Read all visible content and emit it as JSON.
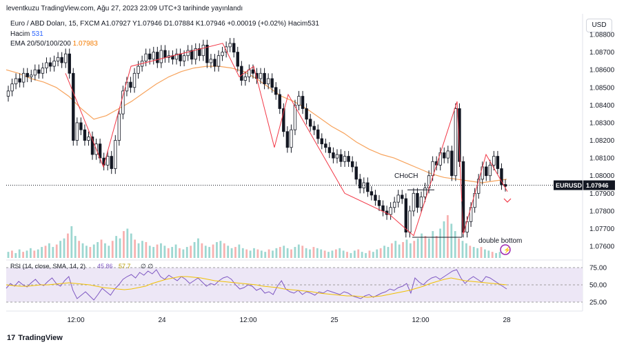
{
  "header": {
    "published": "leventkuzu TradingView.com, Ağu 27, 2023 23:09 UTC+3 tarihinde yayınlandı"
  },
  "legend": {
    "symbol_line": "Euro / ABD Doları, 15, FXCM  A1.07927  Y1.07946  D1.07884  K1.07946  +0.00019 (+0.02%)  Hacim531",
    "volume_label": "Hacim",
    "volume_value": "531",
    "ema_label": "EMA 20/50/100/200",
    "ema_value": "1.07983"
  },
  "currency_button": "USD",
  "price_tag": {
    "symbol": "EURUSD",
    "value": "1.07946"
  },
  "annotations": {
    "choch": "CHoCH",
    "double_bottom": "double bottom"
  },
  "rsi": {
    "label": "RSI (14, close, SMA, 14, 2)",
    "value": "45.86",
    "extra": "57.7",
    "tail": "∅ ∅"
  },
  "footer": {
    "brand": "TradingView"
  },
  "colors": {
    "candle": "#131722",
    "zigzag": "#f23645",
    "ema": "#f7a35c",
    "vol_up": "#26a69a",
    "vol_down": "#ef5350",
    "rsi_line": "#7e57c2",
    "rsi_ma": "#f0c000",
    "rsi_band": "#ede7f6"
  },
  "chart_data": {
    "type": "candlestick",
    "symbol": "EURUSD",
    "timeframe": "15",
    "price_axis": {
      "ticks": [
        "1.08800",
        "1.08700",
        "1.08600",
        "1.08500",
        "1.08400",
        "1.08300",
        "1.08200",
        "1.08100",
        "1.08000",
        "1.07900",
        "1.07800",
        "1.07700",
        "1.07600"
      ],
      "ylim": [
        1.0753,
        1.088
      ]
    },
    "time_axis": {
      "ticks": [
        "12:00",
        "24",
        "12:00",
        "25",
        "12:00",
        "28"
      ]
    },
    "rsi_axis": {
      "ticks": [
        "75.00",
        "50.00",
        "25.00"
      ],
      "ylim": [
        15,
        85
      ]
    },
    "price_close": [
      1.0848,
      1.0852,
      1.0855,
      1.0853,
      1.0858,
      1.0856,
      1.0857,
      1.086,
      1.0858,
      1.0861,
      1.0864,
      1.0862,
      1.0865,
      1.0867,
      1.0864,
      1.0869,
      1.0858,
      1.082,
      1.083,
      1.0826,
      1.082,
      1.0822,
      1.0812,
      1.0818,
      1.081,
      1.0806,
      1.0811,
      1.0804,
      1.082,
      1.0835,
      1.0848,
      1.0853,
      1.085,
      1.0858,
      1.0862,
      1.0865,
      1.0869,
      1.0866,
      1.087,
      1.0864,
      1.0871,
      1.0867,
      1.0868,
      1.0866,
      1.0869,
      1.0865,
      1.0868,
      1.0871,
      1.0866,
      1.0872,
      1.0868,
      1.0874,
      1.0864,
      1.0866,
      1.0862,
      1.0868,
      1.087,
      1.0873,
      1.0875,
      1.087,
      1.0862,
      1.0854,
      1.0856,
      1.086,
      1.0858,
      1.0855,
      1.0858,
      1.0852,
      1.0855,
      1.085,
      1.0846,
      1.0838,
      1.0825,
      1.0816,
      1.0826,
      1.084,
      1.0845,
      1.0838,
      1.0832,
      1.0828,
      1.0826,
      1.0821,
      1.0818,
      1.0816,
      1.0813,
      1.081,
      1.0812,
      1.0808,
      1.0811,
      1.0808,
      1.0805,
      1.0798,
      1.0793,
      1.0796,
      1.0791,
      1.0789,
      1.0786,
      1.0783,
      1.078,
      1.0778,
      1.0782,
      1.0785,
      1.0789,
      1.0787,
      1.0768,
      1.078,
      1.079,
      1.0782,
      1.0788,
      1.0793,
      1.08,
      1.0808,
      1.0806,
      1.0813,
      1.081,
      1.0814,
      1.08,
      1.0838,
      1.0808,
      1.0768,
      1.0774,
      1.0782,
      1.079,
      1.0798,
      1.0805,
      1.08,
      1.0806,
      1.0811,
      1.0804,
      1.0795,
      1.0794
    ],
    "ema_values": [
      1.086,
      1.0858,
      1.0855,
      1.0853,
      1.085,
      1.0845,
      1.0838,
      1.0832,
      1.0834,
      1.0838,
      1.0842,
      1.0847,
      1.0852,
      1.0856,
      1.0859,
      1.0861,
      1.0862,
      1.0862,
      1.0861,
      1.0859,
      1.0855,
      1.085,
      1.0845,
      1.0842,
      1.0838,
      1.0833,
      1.0828,
      1.0824,
      1.0819,
      1.0815,
      1.0812,
      1.081,
      1.0807,
      1.0804,
      1.0801,
      1.0799,
      1.0798,
      1.0797,
      1.0796,
      1.0797,
      1.0798
    ],
    "zigzag_points": [
      {
        "label": "H1",
        "price": 1.0858
      },
      {
        "label": "L1",
        "price": 1.0805
      },
      {
        "label": "H2",
        "price": 1.0862
      },
      {
        "label": "H3",
        "price": 1.0875
      },
      {
        "label": "L2",
        "price": 1.0856
      },
      {
        "label": "H4",
        "price": 1.0862
      },
      {
        "label": "L3",
        "price": 1.0816
      },
      {
        "label": "H5",
        "price": 1.0846
      },
      {
        "label": "L4",
        "price": 1.079
      },
      {
        "label": "L5",
        "price": 1.0778
      },
      {
        "label": "L6",
        "price": 1.0766
      },
      {
        "label": "H6",
        "price": 1.0842
      },
      {
        "label": "L7",
        "price": 1.0767
      },
      {
        "label": "H7",
        "price": 1.0812
      },
      {
        "label": "L8",
        "price": 1.0791
      }
    ],
    "volume": [
      5,
      6,
      4,
      7,
      5,
      6,
      8,
      6,
      7,
      9,
      10,
      12,
      9,
      11,
      14,
      16,
      20,
      26,
      18,
      14,
      12,
      10,
      9,
      11,
      13,
      15,
      12,
      10,
      14,
      18,
      16,
      22,
      24,
      20,
      15,
      12,
      14,
      13,
      10,
      9,
      11,
      12,
      10,
      8,
      9,
      11,
      8,
      7,
      9,
      10,
      13,
      16,
      12,
      10,
      9,
      11,
      13,
      14,
      12,
      10,
      8,
      9,
      11,
      8,
      7,
      6,
      8,
      7,
      6,
      5,
      7,
      6,
      8,
      9,
      10,
      8,
      7,
      9,
      11,
      10,
      8,
      7,
      9,
      8,
      7,
      6,
      5,
      6,
      7,
      8,
      6,
      5,
      4,
      6,
      7,
      5,
      4,
      6,
      5,
      7,
      8,
      10,
      9,
      12,
      14,
      11,
      13,
      15,
      12,
      14,
      16,
      20,
      18,
      16,
      22,
      18,
      24,
      30,
      35,
      28,
      22,
      16,
      14,
      12,
      10,
      9,
      8,
      9,
      7,
      6,
      5,
      4,
      5
    ],
    "rsi": [
      45,
      52,
      48,
      55,
      50,
      47,
      53,
      58,
      51,
      49,
      55,
      60,
      52,
      48,
      56,
      62,
      42,
      30,
      35,
      40,
      34,
      28,
      36,
      45,
      40,
      35,
      44,
      50,
      58,
      62,
      65,
      60,
      68,
      64,
      70,
      66,
      72,
      62,
      58,
      64,
      60,
      56,
      62,
      58,
      52,
      56,
      60,
      54,
      48,
      52,
      50,
      56,
      60,
      62,
      58,
      50,
      44,
      46,
      50,
      48,
      42,
      45,
      38,
      40,
      36,
      48,
      56,
      44,
      40,
      38,
      42,
      36,
      40,
      38,
      35,
      40,
      38,
      42,
      40,
      38,
      36,
      40,
      38,
      34,
      32,
      30,
      34,
      36,
      32,
      35,
      38,
      40,
      44,
      42,
      46,
      48,
      52,
      38,
      60,
      54,
      50,
      56,
      60,
      62,
      58,
      62,
      66,
      70,
      72,
      60,
      52,
      58,
      62,
      58,
      54,
      62,
      60,
      56,
      52,
      48,
      44
    ],
    "rsi_ma": [
      50,
      49,
      48,
      48,
      49,
      50,
      50,
      51,
      52,
      53,
      52,
      51,
      50,
      48,
      46,
      45,
      44,
      43,
      44,
      46,
      48,
      52,
      55,
      58,
      60,
      62,
      62,
      61,
      60,
      58,
      56,
      55,
      54,
      53,
      52,
      51,
      50,
      48,
      47,
      46,
      44,
      43,
      42,
      41,
      40,
      38,
      37,
      36,
      35,
      34,
      34,
      33,
      32,
      33,
      34,
      36,
      38,
      40,
      42,
      45,
      48,
      52,
      55,
      58,
      60,
      58,
      56,
      55,
      54,
      53,
      52,
      51,
      50
    ]
  }
}
